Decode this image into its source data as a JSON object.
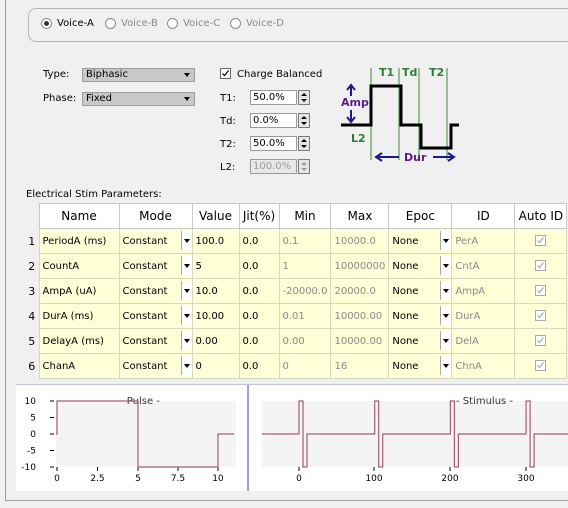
{
  "voices": [
    {
      "label": "Voice-A",
      "selected": true
    },
    {
      "label": "Voice-B",
      "selected": false
    },
    {
      "label": "Voice-C",
      "selected": false
    },
    {
      "label": "Voice-D",
      "selected": false
    }
  ],
  "settings": {
    "type_label": "Type:",
    "type_value": "Biphasic",
    "phase_label": "Phase:",
    "phase_value": "Fixed",
    "charge_balanced_label": "Charge Balanced",
    "charge_balanced_checked": true,
    "t1_label": "T1:",
    "t1_value": "50.0%",
    "td_label": "Td:",
    "td_value": "0.0%",
    "t2_label": "T2:",
    "t2_value": "50.0%",
    "l2_label": "L2:",
    "l2_value": "100.0%"
  },
  "diagram": {
    "t1": "T1",
    "td": "Td",
    "t2": "T2",
    "amp": "Amp",
    "l2": "L2",
    "dur": "Dur",
    "wave_color": "#000000",
    "guide_color": "#5a9a5a",
    "label_green": "#2e7d32",
    "label_purple": "#5a1a8a",
    "arrow_blue": "#1a1a8a"
  },
  "params": {
    "section_label": "Electrical Stim Parameters:",
    "columns": [
      "Name",
      "Mode",
      "Value",
      "Jit(%)",
      "Min",
      "Max",
      "Epoc",
      "ID",
      "Auto ID"
    ],
    "rows": [
      {
        "num": "1",
        "name": "PeriodA (ms)",
        "mode": "Constant",
        "value": "100.0",
        "jit": "0.0",
        "min": "0.1",
        "max": "10000.0",
        "epoc": "None",
        "id": "PerA",
        "auto": true
      },
      {
        "num": "2",
        "name": "CountA",
        "mode": "Constant",
        "value": "5",
        "jit": "0.0",
        "min": "1",
        "max": "10000000",
        "epoc": "None",
        "id": "CntA",
        "auto": true
      },
      {
        "num": "3",
        "name": "AmpA (uA)",
        "mode": "Constant",
        "value": "10.0",
        "jit": "0.0",
        "min": "-20000.0",
        "max": "20000.0",
        "epoc": "None",
        "id": "AmpA",
        "auto": true
      },
      {
        "num": "4",
        "name": "DurA (ms)",
        "mode": "Constant",
        "value": "10.00",
        "jit": "0.0",
        "min": "0.01",
        "max": "10000.00",
        "epoc": "None",
        "id": "DurA",
        "auto": true
      },
      {
        "num": "5",
        "name": "DelayA (ms)",
        "mode": "Constant",
        "value": "0.00",
        "jit": "0.0",
        "min": "0.00",
        "max": "10000.00",
        "epoc": "None",
        "id": "DelA",
        "auto": true
      },
      {
        "num": "6",
        "name": "ChanA",
        "mode": "Constant",
        "value": "0",
        "jit": "0.0",
        "min": "0",
        "max": "16",
        "epoc": "None",
        "id": "ChnA",
        "auto": true
      }
    ]
  },
  "pulse_plot": {
    "title": "- Pulse -",
    "y_ticks": [
      "10",
      "5",
      "0",
      "-5",
      "-10"
    ],
    "x_ticks": [
      "0",
      "2.5",
      "5",
      "7.5",
      "10"
    ],
    "trace_color": "#a06070"
  },
  "stimulus_plot": {
    "title": "- Stimulus -",
    "x_ticks": [
      "0",
      "100",
      "200",
      "300"
    ],
    "trace_color": "#a06070"
  }
}
